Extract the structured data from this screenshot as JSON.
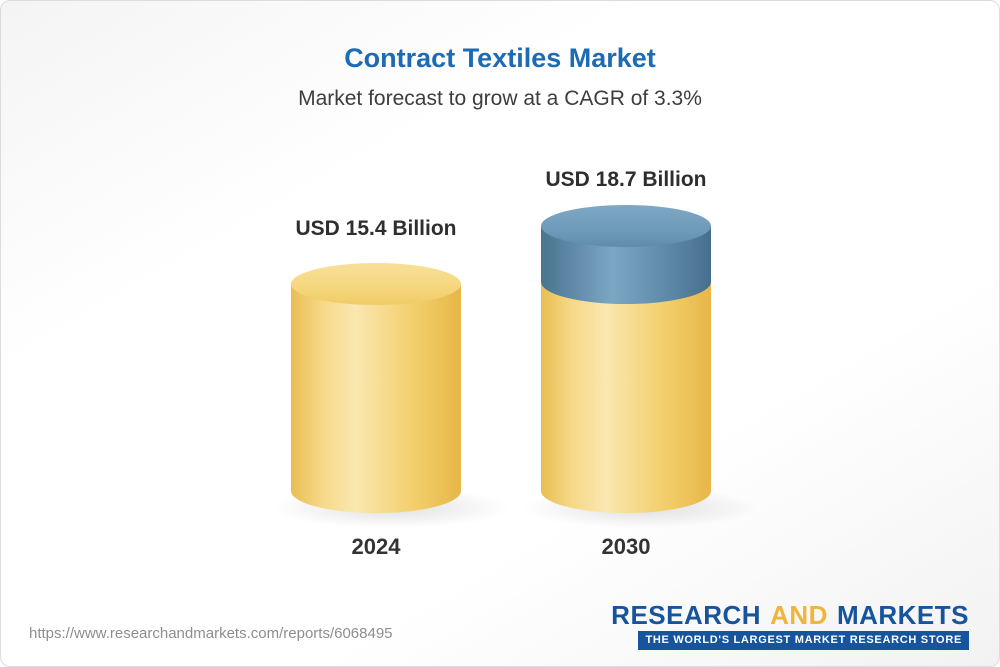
{
  "header": {
    "title": "Contract Textiles Market",
    "subtitle": "Market forecast to grow at a CAGR of 3.3%"
  },
  "chart_data": {
    "type": "bar",
    "title": "Contract Textiles Market",
    "subtitle": "Market forecast to grow at a CAGR of 3.3%",
    "categories": [
      "2024",
      "2030"
    ],
    "values": [
      15.4,
      18.7
    ],
    "unit": "USD Billion",
    "value_labels": [
      "USD 15.4 Billion",
      "USD 18.7 Billion"
    ],
    "cagr_percent": 3.3,
    "growth_segment_value": 3.3,
    "ylim": [
      0,
      20
    ],
    "grid": false,
    "legend": false,
    "bar_style": "3d-cylinder",
    "bar_color": "#f3cf6c",
    "growth_segment_color": "#6b98b7"
  },
  "footer": {
    "url": "https://www.researchandmarkets.com/reports/6068495",
    "logo": {
      "research": "RESEARCH",
      "and": "AND",
      "markets": "MARKETS",
      "tagline": "THE WORLD'S LARGEST MARKET RESEARCH STORE"
    }
  },
  "colors": {
    "title_blue": "#1d6bb2",
    "subtitle_gray": "#3d3d3d",
    "bar_yellow": "#f3cf6c",
    "bar_blue": "#6b98b7",
    "logo_blue": "#16549e",
    "logo_yellow": "#f0b53a",
    "url_gray": "#8e8e8e"
  }
}
